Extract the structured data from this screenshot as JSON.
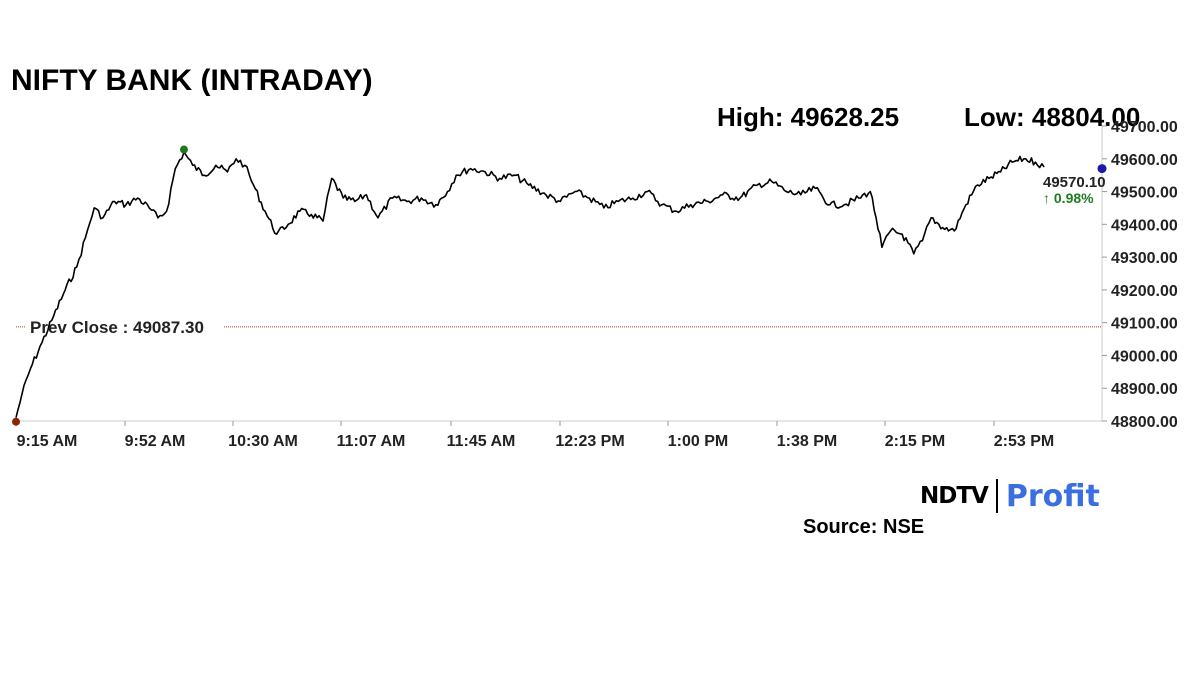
{
  "header": {
    "title": "NIFTY BANK (INTRADAY)",
    "high_text": "High: 49628.25",
    "low_text": "Low: 48804.00"
  },
  "chart_data": {
    "type": "line",
    "title": "NIFTY BANK (INTRADAY)",
    "xlabel": "",
    "ylabel": "",
    "x_tick_labels": [
      "9:15 AM",
      "9:52 AM",
      "10:30 AM",
      "11:07 AM",
      "11:45 AM",
      "12:23 PM",
      "1:00 PM",
      "1:38 PM",
      "2:15 PM",
      "2:53 PM"
    ],
    "y_tick_labels": [
      "48800.00",
      "48900.00",
      "49000.00",
      "49100.00",
      "49200.00",
      "49300.00",
      "49400.00",
      "49500.00",
      "49600.00",
      "49700.00"
    ],
    "ylim": [
      48800,
      49700
    ],
    "xlim": [
      "9:15 AM",
      "3:30 PM"
    ],
    "high": 49628.25,
    "low": 48804.0,
    "prev_close": 49087.3,
    "prev_close_label": "Prev Close : 49087.30",
    "last_value": "49570.10",
    "change_label": "↑ 0.98%",
    "series": [
      {
        "values": [
          [
            "9:15 AM",
            48810
          ],
          [
            "9:17 AM",
            48880
          ],
          [
            "9:20 AM",
            48960
          ],
          [
            "9:24 AM",
            49040
          ],
          [
            "9:28 AM",
            49120
          ],
          [
            "9:32 AM",
            49200
          ],
          [
            "9:36 AM",
            49270
          ],
          [
            "9:39 AM",
            49360
          ],
          [
            "9:42 AM",
            49450
          ],
          [
            "9:45 AM",
            49420
          ],
          [
            "9:49 AM",
            49470
          ],
          [
            "9:53 AM",
            49460
          ],
          [
            "9:57 AM",
            49480
          ],
          [
            "10:01 AM",
            49450
          ],
          [
            "10:04 AM",
            49420
          ],
          [
            "10:07 AM",
            49440
          ],
          [
            "10:10 AM",
            49570
          ],
          [
            "10:13 AM",
            49620
          ],
          [
            "10:16 AM",
            49580
          ],
          [
            "10:20 AM",
            49550
          ],
          [
            "10:24 AM",
            49580
          ],
          [
            "10:28 AM",
            49560
          ],
          [
            "10:31 AM",
            49600
          ],
          [
            "10:34 AM",
            49580
          ],
          [
            "10:37 AM",
            49520
          ],
          [
            "10:41 AM",
            49440
          ],
          [
            "10:45 AM",
            49370
          ],
          [
            "10:49 AM",
            49400
          ],
          [
            "10:53 AM",
            49440
          ],
          [
            "10:57 AM",
            49430
          ],
          [
            "11:01 AM",
            49410
          ],
          [
            "11:04 AM",
            49540
          ],
          [
            "11:08 AM",
            49480
          ],
          [
            "11:12 AM",
            49470
          ],
          [
            "11:16 AM",
            49490
          ],
          [
            "11:20 AM",
            49420
          ],
          [
            "11:25 AM",
            49480
          ],
          [
            "11:30 AM",
            49470
          ],
          [
            "11:35 AM",
            49480
          ],
          [
            "11:40 AM",
            49460
          ],
          [
            "11:44 AM",
            49500
          ],
          [
            "11:47 AM",
            49550
          ],
          [
            "11:52 AM",
            49570
          ],
          [
            "11:57 AM",
            49560
          ],
          [
            "12:02 PM",
            49540
          ],
          [
            "12:07 PM",
            49550
          ],
          [
            "12:12 PM",
            49520
          ],
          [
            "12:18 PM",
            49490
          ],
          [
            "12:23 PM",
            49470
          ],
          [
            "12:28 PM",
            49500
          ],
          [
            "12:33 PM",
            49480
          ],
          [
            "12:38 PM",
            49450
          ],
          [
            "12:43 PM",
            49470
          ],
          [
            "12:48 PM",
            49480
          ],
          [
            "12:53 PM",
            49500
          ],
          [
            "12:58 PM",
            49460
          ],
          [
            "1:03 PM",
            49440
          ],
          [
            "1:08 PM",
            49460
          ],
          [
            "1:14 PM",
            49470
          ],
          [
            "1:19 PM",
            49490
          ],
          [
            "1:25 PM",
            49480
          ],
          [
            "1:31 PM",
            49520
          ],
          [
            "1:36 PM",
            49530
          ],
          [
            "1:41 PM",
            49500
          ],
          [
            "1:46 PM",
            49490
          ],
          [
            "1:51 PM",
            49510
          ],
          [
            "1:56 PM",
            49460
          ],
          [
            "2:01 PM",
            49460
          ],
          [
            "2:06 PM",
            49480
          ],
          [
            "2:10 PM",
            49500
          ],
          [
            "2:12 PM",
            49420
          ],
          [
            "2:14 PM",
            49330
          ],
          [
            "2:17 PM",
            49380
          ],
          [
            "2:21 PM",
            49370
          ],
          [
            "2:25 PM",
            49310
          ],
          [
            "2:28 PM",
            49350
          ],
          [
            "2:31 PM",
            49420
          ],
          [
            "2:35 PM",
            49390
          ],
          [
            "2:39 PM",
            49380
          ],
          [
            "2:43 PM",
            49460
          ],
          [
            "2:47 PM",
            49520
          ],
          [
            "2:51 PM",
            49540
          ],
          [
            "2:55 PM",
            49560
          ],
          [
            "2:59 PM",
            49590
          ],
          [
            "3:03 PM",
            49600
          ],
          [
            "3:07 PM",
            49590
          ],
          [
            "3:10 PM",
            49575
          ]
        ]
      }
    ],
    "grid": false,
    "colors": {
      "line": "#000000",
      "prev_close_line": "#c0392b",
      "start_dot": "#8b2500",
      "high_dot": "#1f7a1f",
      "end_dot": "#1a1aa6",
      "change_text": "#1f7a1f",
      "axis": "#cccccc"
    }
  },
  "branding": {
    "logo_ndtv": "NDTV",
    "logo_profit": "Profit",
    "source": "Source: NSE"
  }
}
